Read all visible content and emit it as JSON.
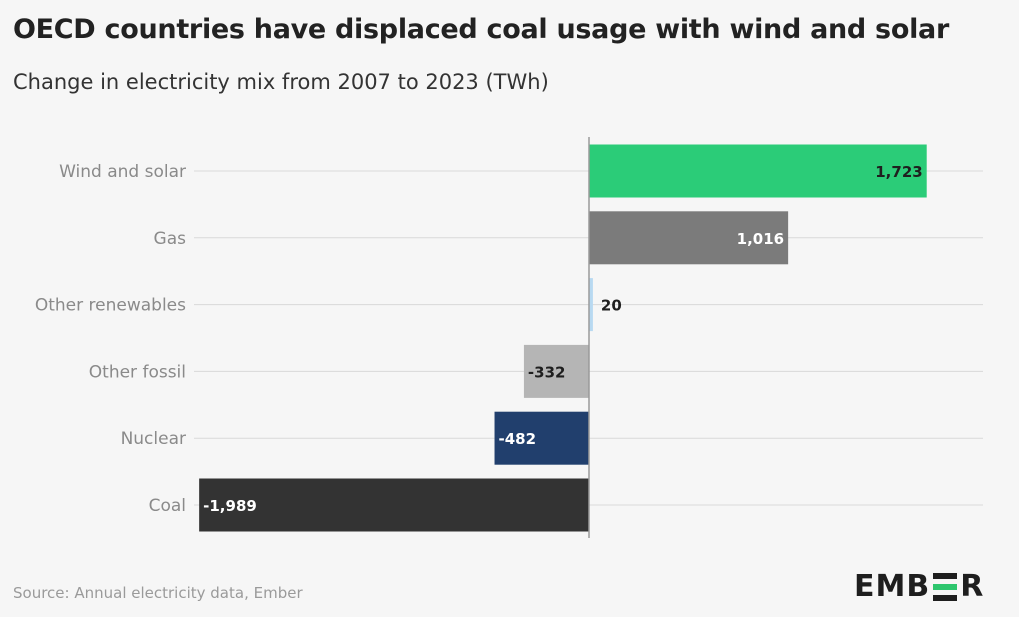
{
  "title": "OECD countries have displaced coal usage with wind and solar",
  "subtitle": "Change in electricity mix from 2007 to 2023 (TWh)",
  "source": "Source: Annual electricity data, Ember",
  "logo": {
    "left": "EMB",
    "right": "R",
    "mark": "E"
  },
  "chart_data": {
    "type": "bar",
    "orientation": "horizontal",
    "categories": [
      "Wind and solar",
      "Gas",
      "Other renewables",
      "Other fossil",
      "Nuclear",
      "Coal"
    ],
    "values": [
      1723,
      1016,
      20,
      -332,
      -482,
      -1989
    ],
    "value_labels": [
      "1,723",
      "1,016",
      "20",
      "-332",
      "-482",
      "-1,989"
    ],
    "colors": [
      "#2bcc78",
      "#7b7b7b",
      "#b8d9f1",
      "#b5b5b5",
      "#213f6d",
      "#333333"
    ],
    "label_colors": [
      "#1f1f1f",
      "#ffffff",
      "#1f1f1f",
      "#1f1f1f",
      "#ffffff",
      "#ffffff"
    ],
    "xlim": [
      -2000,
      2000
    ],
    "title": "OECD countries have displaced coal usage with wind and solar",
    "subtitle": "Change in electricity mix from 2007 to 2023 (TWh)",
    "xlabel": "",
    "ylabel": "",
    "grid": true,
    "legend": "none"
  }
}
